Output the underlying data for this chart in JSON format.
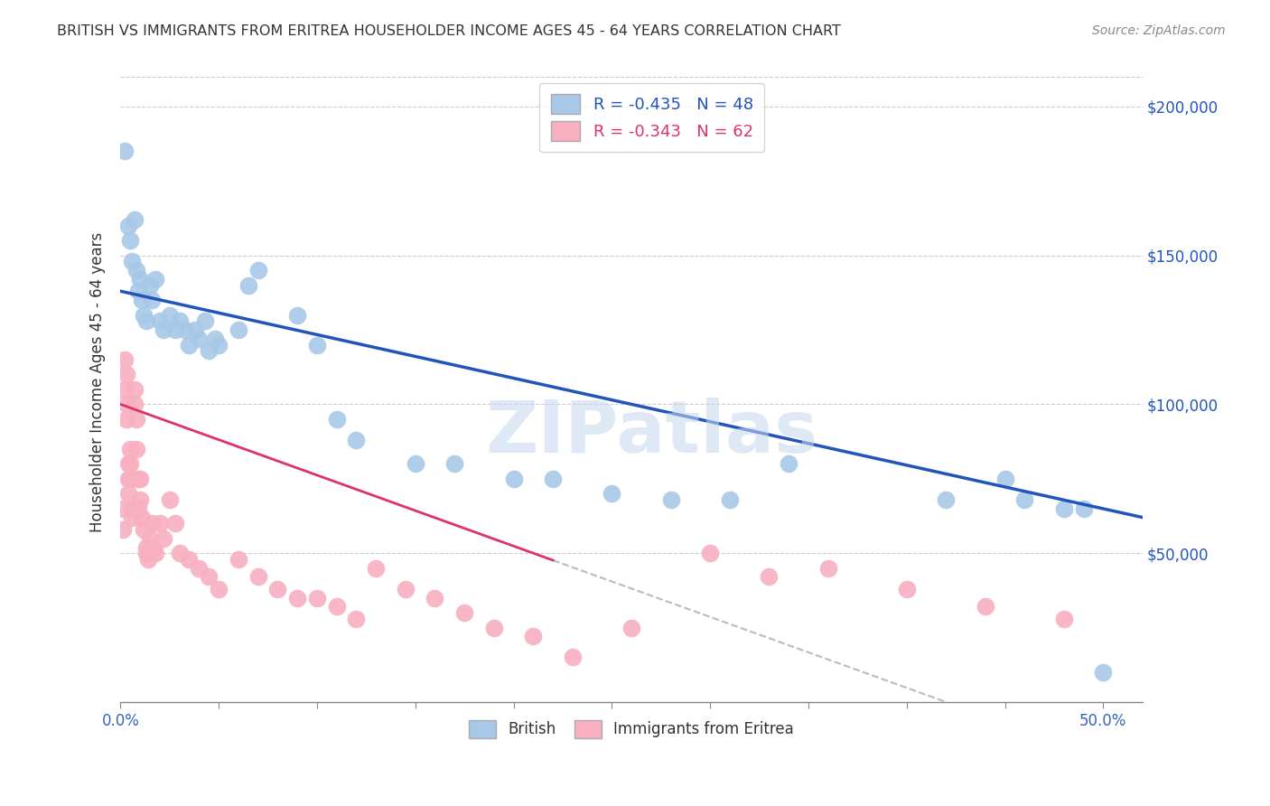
{
  "title": "BRITISH VS IMMIGRANTS FROM ERITREA HOUSEHOLDER INCOME AGES 45 - 64 YEARS CORRELATION CHART",
  "source": "Source: ZipAtlas.com",
  "ylabel": "Householder Income Ages 45 - 64 years",
  "british_R": -0.435,
  "british_N": 48,
  "eritrea_R": -0.343,
  "eritrea_N": 62,
  "ytick_labels": [
    "$50,000",
    "$100,000",
    "$150,000",
    "$200,000"
  ],
  "ytick_values": [
    50000,
    100000,
    150000,
    200000
  ],
  "ylim": [
    0,
    215000
  ],
  "xlim": [
    0.0,
    0.52
  ],
  "british_color": "#a8c8e8",
  "eritrea_color": "#f8b0c0",
  "british_line_color": "#2255bb",
  "eritrea_line_color": "#dd3366",
  "background_color": "#ffffff",
  "grid_color": "#cccccc",
  "watermark": "ZIPatlas",
  "british_x": [
    0.002,
    0.004,
    0.005,
    0.006,
    0.007,
    0.008,
    0.009,
    0.01,
    0.011,
    0.012,
    0.013,
    0.015,
    0.016,
    0.018,
    0.02,
    0.022,
    0.025,
    0.028,
    0.03,
    0.033,
    0.035,
    0.038,
    0.04,
    0.043,
    0.045,
    0.048,
    0.05,
    0.06,
    0.065,
    0.07,
    0.09,
    0.1,
    0.11,
    0.12,
    0.15,
    0.17,
    0.2,
    0.22,
    0.25,
    0.28,
    0.31,
    0.34,
    0.42,
    0.45,
    0.46,
    0.48,
    0.49,
    0.5
  ],
  "british_y": [
    185000,
    160000,
    155000,
    148000,
    162000,
    145000,
    138000,
    142000,
    135000,
    130000,
    128000,
    140000,
    135000,
    142000,
    128000,
    125000,
    130000,
    125000,
    128000,
    125000,
    120000,
    125000,
    122000,
    128000,
    118000,
    122000,
    120000,
    125000,
    140000,
    145000,
    130000,
    120000,
    95000,
    88000,
    80000,
    80000,
    75000,
    75000,
    70000,
    68000,
    68000,
    80000,
    68000,
    75000,
    68000,
    65000,
    65000,
    10000
  ],
  "eritrea_x": [
    0.001,
    0.001,
    0.002,
    0.002,
    0.003,
    0.003,
    0.003,
    0.004,
    0.004,
    0.004,
    0.005,
    0.005,
    0.005,
    0.006,
    0.006,
    0.007,
    0.007,
    0.008,
    0.008,
    0.009,
    0.009,
    0.01,
    0.01,
    0.011,
    0.012,
    0.013,
    0.013,
    0.014,
    0.015,
    0.016,
    0.017,
    0.018,
    0.02,
    0.022,
    0.025,
    0.028,
    0.03,
    0.035,
    0.04,
    0.045,
    0.05,
    0.06,
    0.07,
    0.08,
    0.09,
    0.1,
    0.11,
    0.12,
    0.13,
    0.145,
    0.16,
    0.175,
    0.19,
    0.21,
    0.23,
    0.26,
    0.3,
    0.33,
    0.36,
    0.4,
    0.44,
    0.48
  ],
  "eritrea_y": [
    65000,
    58000,
    115000,
    105000,
    110000,
    100000,
    95000,
    80000,
    75000,
    70000,
    85000,
    80000,
    75000,
    65000,
    62000,
    105000,
    100000,
    95000,
    85000,
    75000,
    65000,
    75000,
    68000,
    62000,
    58000,
    52000,
    50000,
    48000,
    55000,
    60000,
    52000,
    50000,
    60000,
    55000,
    68000,
    60000,
    50000,
    48000,
    45000,
    42000,
    38000,
    48000,
    42000,
    38000,
    35000,
    35000,
    32000,
    28000,
    45000,
    38000,
    35000,
    30000,
    25000,
    22000,
    15000,
    25000,
    50000,
    42000,
    45000,
    38000,
    32000,
    28000
  ],
  "british_trend_x0": 0.0,
  "british_trend_y0": 138000,
  "british_trend_x1": 0.52,
  "british_trend_y1": 62000,
  "eritrea_trend_x0": 0.0,
  "eritrea_trend_y0": 100000,
  "eritrea_trend_x_solid_end": 0.22,
  "eritrea_trend_x_dash_end": 0.42
}
